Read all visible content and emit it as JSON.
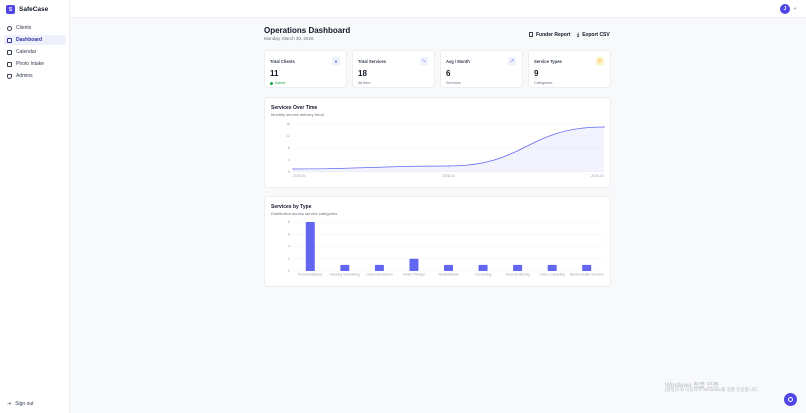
{
  "app": {
    "name": "SafeCase",
    "logo_letter": "S"
  },
  "user": {
    "initial": "J"
  },
  "sidebar": {
    "items": [
      {
        "label": "Clients",
        "icon": "users-icon"
      },
      {
        "label": "Dashboard",
        "icon": "dashboard-icon",
        "active": true
      },
      {
        "label": "Calendar",
        "icon": "calendar-icon"
      },
      {
        "label": "Photo Intake",
        "icon": "camera-icon"
      },
      {
        "label": "Admins",
        "icon": "shield-icon"
      }
    ],
    "signout": "Sign out"
  },
  "header": {
    "title": "Operations Dashboard",
    "date": "Monday, March 30, 2026",
    "funder_report": "Funder Report",
    "export_csv": "Export CSV"
  },
  "stats": [
    {
      "label": "Total Clients",
      "value": "11",
      "sub": "Active",
      "icon": "users-icon",
      "accent": "#6366f1"
    },
    {
      "label": "Total Services",
      "value": "18",
      "sub": "All time",
      "icon": "activity-icon",
      "accent": "#6366f1"
    },
    {
      "label": "Avg / Month",
      "value": "6",
      "sub": "Services",
      "icon": "trend-icon",
      "accent": "#6366f1"
    },
    {
      "label": "Service Types",
      "value": "9",
      "sub": "Categories",
      "icon": "clock-icon",
      "accent": "#f59e0b"
    }
  ],
  "line_card": {
    "title": "Services Over Time",
    "subtitle": "Monthly service delivery trend"
  },
  "bar_card": {
    "title": "Services by Type",
    "subtitle": "Distribution across service categories"
  },
  "chart_data": [
    {
      "type": "area",
      "title": "Services Over Time",
      "x": [
        "2026-01",
        "2026-02",
        "2026-03"
      ],
      "values": [
        1,
        2,
        15
      ],
      "ylim": [
        0,
        16
      ],
      "yticks": [
        0,
        4,
        8,
        12,
        16
      ],
      "color": "#6366f1"
    },
    {
      "type": "bar",
      "title": "Services by Type",
      "categories": [
        "Food Assistance",
        "Housing Counseling",
        "Crisis Intervention",
        "Music Therapy",
        "Rehabilitation",
        "Counseling",
        "Food Monitoring",
        "Crisis Counseling",
        "Mental Health Services"
      ],
      "values": [
        8,
        1,
        1,
        2,
        1,
        1,
        1,
        1,
        1
      ],
      "ylim": [
        0,
        8
      ],
      "yticks": [
        0,
        2,
        4,
        6,
        8
      ],
      "color": "#6366f1"
    }
  ],
  "watermark": {
    "line1": "Windows 정품 인증",
    "line2": "[설정]으로 이동하여 Windows를 정품 인증합니다."
  }
}
